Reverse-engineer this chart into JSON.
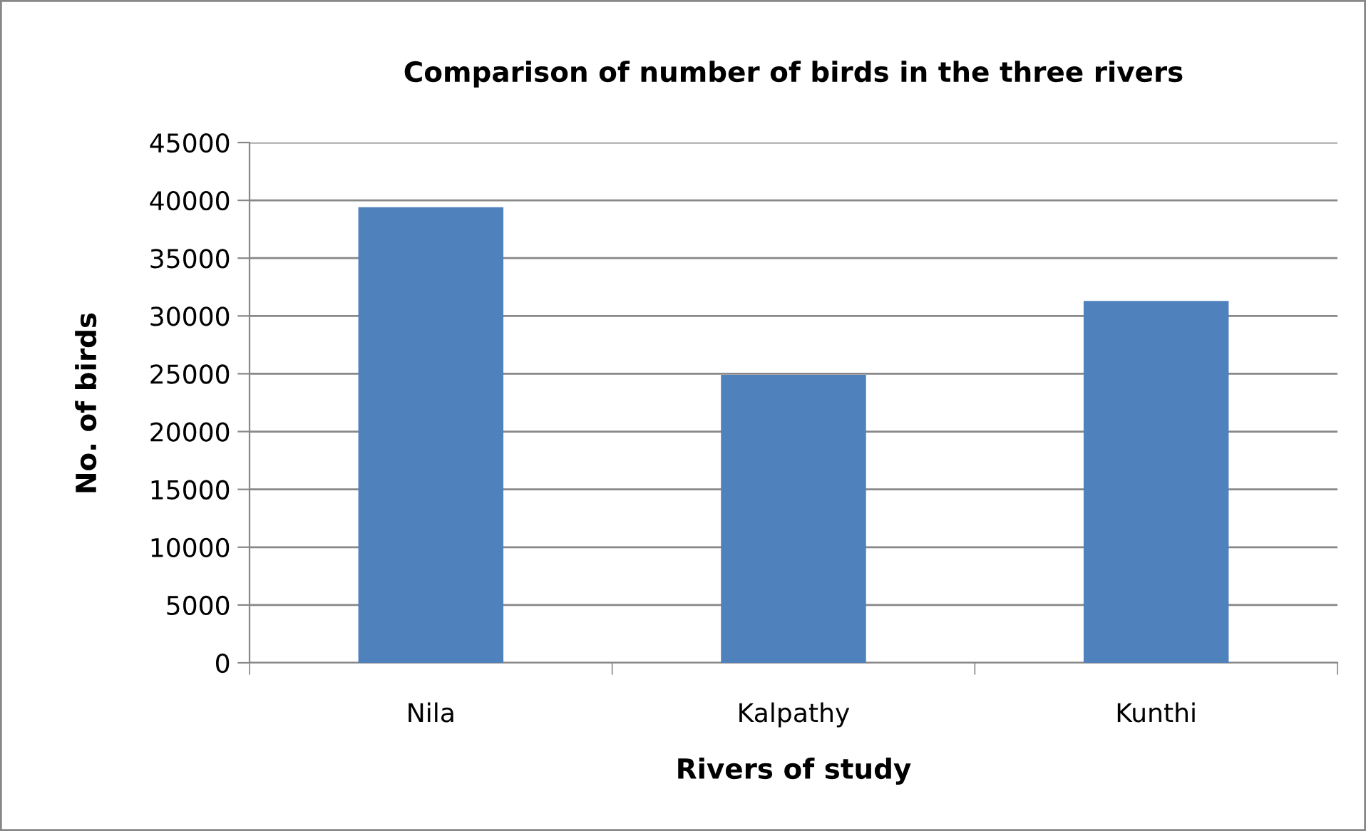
{
  "chart_data": {
    "type": "bar",
    "title": "Comparison of number of birds in the three rivers",
    "xlabel": "Rivers of study",
    "ylabel": "No. of birds",
    "categories": [
      "Nila",
      "Kalpathy",
      "Kunthi"
    ],
    "values": [
      39400,
      24900,
      31300
    ],
    "color": "#4f81bd",
    "ylim": [
      0,
      45000
    ],
    "yticks": [
      0,
      5000,
      10000,
      15000,
      20000,
      25000,
      30000,
      35000,
      40000,
      45000
    ],
    "grid": "y",
    "legend": false
  }
}
